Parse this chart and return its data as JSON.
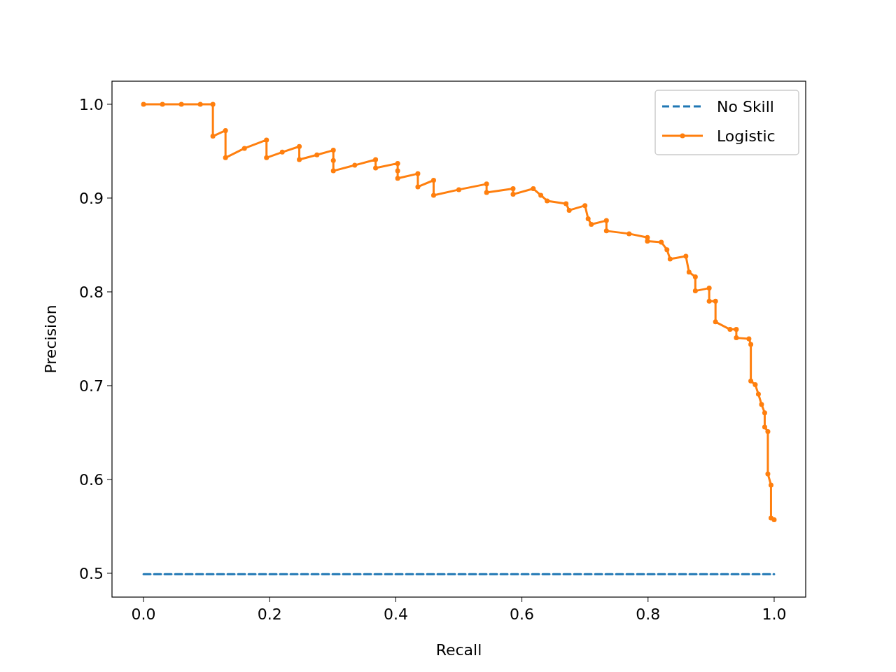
{
  "chart_data": {
    "type": "line",
    "xlabel": "Recall",
    "ylabel": "Precision",
    "xlim": [
      -0.05,
      1.05
    ],
    "ylim": [
      0.4746,
      1.0246
    ],
    "xticks": [
      {
        "value": 0,
        "label": "0.0"
      },
      0.2,
      0.4,
      0.6,
      0.8,
      {
        "value": 1,
        "label": "1.0"
      }
    ],
    "yticks": [
      {
        "value": 0.5,
        "label": "0.5"
      },
      0.6,
      0.7,
      0.8,
      0.9,
      {
        "value": 1,
        "label": "1.0"
      }
    ],
    "grid": false,
    "legend": "top right",
    "series": [
      {
        "name": "No Skill",
        "color": "#1f77b4",
        "line_style": "dashed",
        "marker": "none",
        "x": [
          0,
          1
        ],
        "values": [
          0.499,
          0.499
        ]
      },
      {
        "name": "Logistic",
        "color": "#ff7f0e",
        "line_style": "solid",
        "marker": "circle",
        "x": [
          0,
          0.03,
          0.06,
          0.09,
          0.11,
          0.11,
          0.13,
          0.13,
          0.16,
          0.195,
          0.195,
          0.22,
          0.247,
          0.247,
          0.275,
          0.301,
          0.301,
          0.301,
          0.335,
          0.368,
          0.368,
          0.403,
          0.403,
          0.403,
          0.435,
          0.435,
          0.46,
          0.46,
          0.5,
          0.544,
          0.544,
          0.586,
          0.586,
          0.618,
          0.63,
          0.64,
          0.67,
          0.675,
          0.7,
          0.705,
          0.71,
          0.734,
          0.734,
          0.77,
          0.799,
          0.799,
          0.821,
          0.83,
          0.835,
          0.86,
          0.865,
          0.875,
          0.875,
          0.897,
          0.897,
          0.907,
          0.907,
          0.93,
          0.94,
          0.94,
          0.96,
          0.963,
          0.963,
          0.97,
          0.975,
          0.98,
          0.985,
          0.985,
          0.99,
          0.99,
          0.995,
          0.995,
          1.0
        ],
        "values": [
          1.0,
          1.0,
          1.0,
          1.0,
          1.0,
          0.966,
          0.972,
          0.943,
          0.953,
          0.962,
          0.943,
          0.949,
          0.955,
          0.941,
          0.946,
          0.951,
          0.94,
          0.929,
          0.935,
          0.941,
          0.932,
          0.937,
          0.929,
          0.921,
          0.926,
          0.912,
          0.919,
          0.903,
          0.909,
          0.915,
          0.906,
          0.91,
          0.904,
          0.91,
          0.903,
          0.897,
          0.894,
          0.887,
          0.892,
          0.878,
          0.872,
          0.876,
          0.865,
          0.862,
          0.858,
          0.854,
          0.853,
          0.845,
          0.835,
          0.838,
          0.821,
          0.816,
          0.801,
          0.804,
          0.79,
          0.79,
          0.768,
          0.76,
          0.76,
          0.751,
          0.75,
          0.744,
          0.705,
          0.701,
          0.691,
          0.68,
          0.671,
          0.656,
          0.651,
          0.606,
          0.594,
          0.559,
          0.557
        ]
      }
    ]
  }
}
